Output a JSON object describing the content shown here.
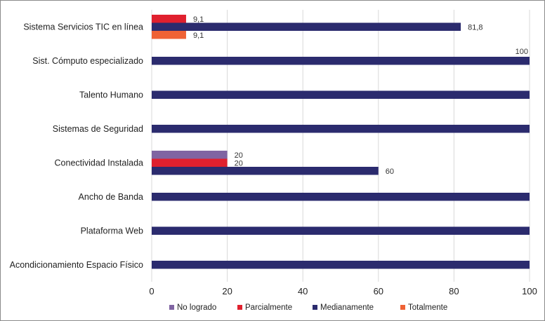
{
  "chart_data": {
    "type": "bar",
    "orientation": "horizontal",
    "categories": [
      "Sistema Servicios TIC en línea",
      "Sist. Cómputo especializado",
      "Talento Humano",
      "Sistemas de Seguridad",
      "Conectividad Instalada",
      "Ancho de Banda",
      "Plataforma Web",
      "Acondicionamiento Espacio Físico"
    ],
    "series": [
      {
        "name": "No logrado",
        "color": "#8064a2",
        "values": [
          null,
          null,
          null,
          null,
          20,
          null,
          null,
          null
        ],
        "labels": [
          "",
          "",
          "",
          "",
          "20",
          "",
          "",
          ""
        ]
      },
      {
        "name": "Parcialmente",
        "color": "#e0202e",
        "values": [
          9.1,
          null,
          null,
          null,
          20,
          null,
          null,
          null
        ],
        "labels": [
          "9,1",
          "",
          "",
          "",
          "20",
          "",
          "",
          ""
        ]
      },
      {
        "name": "Medianamente",
        "color": "#2b2b6e",
        "values": [
          81.8,
          100,
          100,
          100,
          60,
          100,
          100,
          100
        ],
        "labels": [
          "81,8",
          "100",
          "",
          "",
          "60",
          "",
          "",
          ""
        ]
      },
      {
        "name": "Totalmente",
        "color": "#ef6235",
        "values": [
          9.1,
          null,
          null,
          null,
          null,
          null,
          null,
          null
        ],
        "labels": [
          "9,1",
          "",
          "",
          "",
          "",
          "",
          "",
          ""
        ]
      }
    ],
    "xlim": [
      0,
      100
    ],
    "xticks": [
      0,
      20,
      40,
      60,
      80,
      100
    ],
    "xtick_labels": [
      "0",
      "20",
      "40",
      "60",
      "80",
      "100"
    ],
    "grid": "vertical",
    "legend_position": "bottom"
  }
}
